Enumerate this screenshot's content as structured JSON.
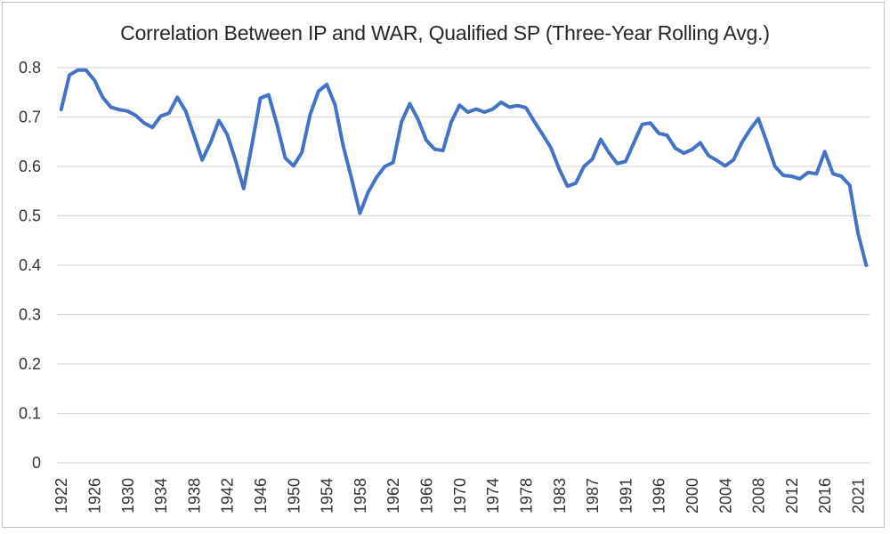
{
  "chart_data": {
    "type": "line",
    "title": "Correlation Between IP and WAR, Qualified SP (Three-Year Rolling Avg.)",
    "xlabel": "",
    "ylabel": "",
    "legend": "none",
    "grid": "horizontal",
    "ylim": [
      0,
      0.8
    ],
    "y_ticks": [
      0,
      0.1,
      0.2,
      0.3,
      0.4,
      0.5,
      0.6,
      0.7,
      0.8
    ],
    "y_tick_labels": [
      "0",
      "0.1",
      "0.2",
      "0.3",
      "0.4",
      "0.5",
      "0.6",
      "0.7",
      "0.8"
    ],
    "x_tick_interval": 4,
    "x_tick_labels": [
      "1922",
      "1926",
      "1930",
      "1934",
      "1938",
      "1942",
      "1946",
      "1950",
      "1954",
      "1958",
      "1962",
      "1966",
      "1970",
      "1974",
      "1978",
      "1983",
      "1987",
      "1991",
      "1996",
      "2000",
      "2004",
      "2008",
      "2012",
      "2016",
      "2021"
    ],
    "categories": [
      1922,
      1923,
      1924,
      1925,
      1926,
      1927,
      1928,
      1929,
      1930,
      1931,
      1932,
      1933,
      1934,
      1935,
      1936,
      1937,
      1938,
      1939,
      1940,
      1941,
      1942,
      1943,
      1944,
      1945,
      1946,
      1947,
      1948,
      1949,
      1950,
      1951,
      1952,
      1953,
      1954,
      1955,
      1956,
      1957,
      1958,
      1959,
      1960,
      1961,
      1962,
      1963,
      1964,
      1965,
      1966,
      1967,
      1968,
      1969,
      1970,
      1971,
      1972,
      1973,
      1974,
      1975,
      1976,
      1977,
      1978,
      1979,
      1980,
      1982,
      1983,
      1984,
      1985,
      1986,
      1987,
      1988,
      1989,
      1990,
      1991,
      1992,
      1993,
      1995,
      1996,
      1997,
      1998,
      1999,
      2000,
      2001,
      2002,
      2003,
      2004,
      2005,
      2006,
      2007,
      2008,
      2009,
      2010,
      2011,
      2012,
      2013,
      2014,
      2015,
      2016,
      2017,
      2018,
      2019,
      2021,
      2022
    ],
    "values": [
      0.715,
      0.785,
      0.795,
      0.795,
      0.775,
      0.74,
      0.72,
      0.715,
      0.712,
      0.703,
      0.688,
      0.679,
      0.702,
      0.708,
      0.74,
      0.712,
      0.663,
      0.613,
      0.648,
      0.693,
      0.665,
      0.613,
      0.555,
      0.645,
      0.738,
      0.745,
      0.685,
      0.617,
      0.601,
      0.628,
      0.705,
      0.752,
      0.766,
      0.725,
      0.64,
      0.575,
      0.505,
      0.548,
      0.578,
      0.6,
      0.608,
      0.69,
      0.727,
      0.695,
      0.653,
      0.635,
      0.632,
      0.69,
      0.724,
      0.71,
      0.716,
      0.71,
      0.716,
      0.73,
      0.72,
      0.723,
      0.719,
      0.691,
      0.665,
      0.638,
      0.595,
      0.56,
      0.566,
      0.6,
      0.615,
      0.655,
      0.628,
      0.606,
      0.61,
      0.648,
      0.685,
      0.688,
      0.667,
      0.663,
      0.637,
      0.627,
      0.634,
      0.648,
      0.622,
      0.612,
      0.601,
      0.613,
      0.648,
      0.675,
      0.697,
      0.65,
      0.6,
      0.582,
      0.58,
      0.575,
      0.588,
      0.585,
      0.63,
      0.585,
      0.58,
      0.562,
      0.465,
      0.4
    ]
  },
  "style": {
    "line_color": "#4472C4",
    "gridline_color": "#D9D9D9",
    "axis_text_color": "#333333",
    "title_color": "#262626",
    "frame_color": "#BFBFBF",
    "background": "#FFFFFF"
  }
}
